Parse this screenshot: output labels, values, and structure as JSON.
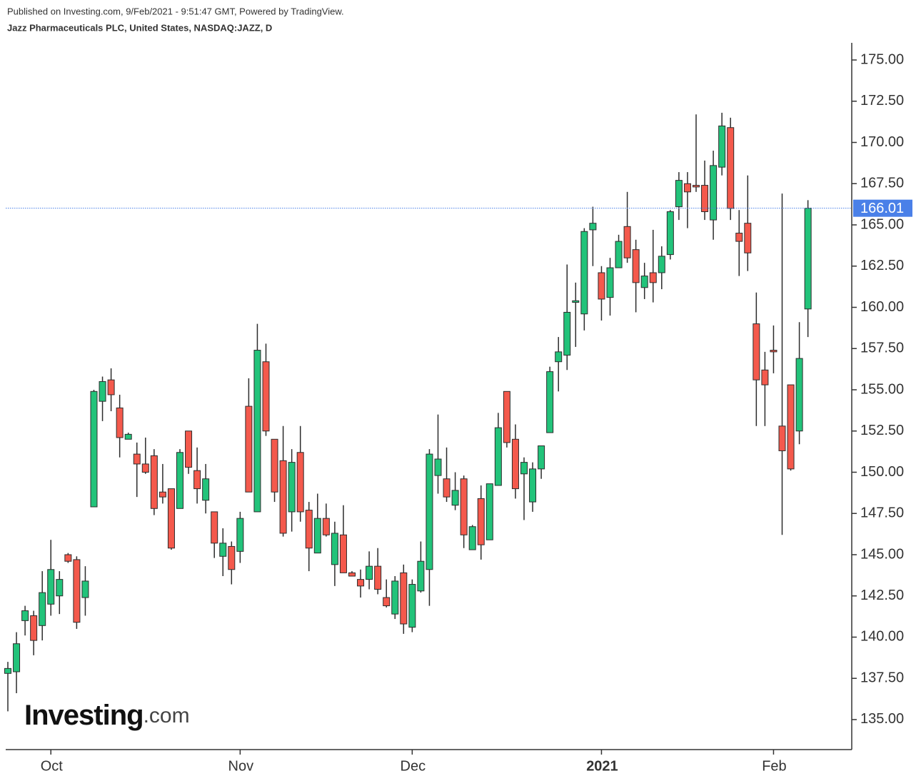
{
  "chart_data": {
    "type": "candlestick",
    "header": "Published on Investing.com, 9/Feb/2021 - 9:51:47 GMT, Powered by TradingView.",
    "title": "Jazz Pharmaceuticals PLC, United States, NASDAQ:JAZZ, D",
    "logo": [
      "Investing",
      ".com"
    ],
    "categories": [
      null,
      null,
      null,
      null,
      null,
      "Oct",
      null,
      null,
      null,
      null,
      null,
      null,
      null,
      null,
      null,
      null,
      null,
      null,
      null,
      null,
      null,
      null,
      null,
      null,
      null,
      null,
      null,
      "Nov",
      null,
      null,
      null,
      null,
      null,
      null,
      null,
      null,
      null,
      null,
      null,
      null,
      null,
      null,
      null,
      null,
      null,
      null,
      null,
      "Dec",
      null,
      null,
      null,
      null,
      null,
      null,
      null,
      null,
      null,
      null,
      null,
      null,
      null,
      null,
      null,
      null,
      null,
      null,
      null,
      null,
      null,
      "2021",
      null,
      null,
      null,
      null,
      null,
      null,
      null,
      null,
      null,
      null,
      null,
      null,
      null,
      null,
      null,
      null,
      null,
      null,
      null,
      "Feb",
      null,
      null,
      null,
      null,
      null
    ],
    "series": [
      {
        "open": [
          137.8,
          137.9,
          141.0,
          141.3,
          140.7,
          142.0,
          142.5,
          145.0,
          144.7,
          142.4,
          147.9,
          154.3,
          155.6,
          153.9,
          152.0,
          151.1,
          150.5,
          151.0,
          148.8,
          149.0,
          147.8,
          152.5,
          150.1,
          148.3,
          147.6,
          144.9,
          145.5,
          145.2,
          154.0,
          147.6,
          156.7,
          152.0,
          150.7,
          147.6,
          151.2,
          147.7,
          145.1,
          147.2,
          144.4,
          146.2,
          143.9,
          143.5,
          143.5,
          144.3,
          142.4,
          141.4,
          143.9,
          140.6,
          142.8,
          144.1,
          149.8,
          149.6,
          148.0,
          149.6,
          145.3,
          148.4,
          145.9,
          149.2,
          154.9,
          152.0,
          149.9,
          148.2,
          150.2,
          152.4,
          156.7,
          157.1,
          160.3,
          159.6,
          164.7,
          162.1,
          160.6,
          162.4,
          164.9,
          163.5,
          161.2,
          162.1,
          162.1,
          163.2,
          166.1,
          167.5,
          167.4,
          167.4,
          165.3,
          168.5,
          170.9,
          164.5,
          165.1,
          159.0,
          156.2,
          157.4,
          152.8,
          155.3,
          152.5,
          159.9
        ],
        "high": [
          138.5,
          140.3,
          141.9,
          141.6,
          144.0,
          145.9,
          144.0,
          145.1,
          144.9,
          144.3,
          155.0,
          155.8,
          156.3,
          154.7,
          152.4,
          151.8,
          152.1,
          151.4,
          150.5,
          149.0,
          151.4,
          152.5,
          151.5,
          150.5,
          147.6,
          146.6,
          145.8,
          147.6,
          155.7,
          159.0,
          157.8,
          152.0,
          152.8,
          151.4,
          152.8,
          148.2,
          148.7,
          148.1,
          147.0,
          148.0,
          144.0,
          144.1,
          145.2,
          145.4,
          143.5,
          143.7,
          144.4,
          143.5,
          145.8,
          151.4,
          153.5,
          151.5,
          150.0,
          149.8,
          146.8,
          149.2,
          149.3,
          153.6,
          154.9,
          152.9,
          150.9,
          150.6,
          151.6,
          156.4,
          158.2,
          162.6,
          161.5,
          164.8,
          166.1,
          162.5,
          163.0,
          164.4,
          167.0,
          164.1,
          162.7,
          164.7,
          163.7,
          165.9,
          168.2,
          168.2,
          171.7,
          168.9,
          169.5,
          171.8,
          171.5,
          165.9,
          168.0,
          160.9,
          157.3,
          158.9,
          166.9,
          155.3,
          159.1,
          166.5
        ],
        "low": [
          135.5,
          136.6,
          140.1,
          138.9,
          139.8,
          141.3,
          141.4,
          144.5,
          140.5,
          141.3,
          147.9,
          153.1,
          153.7,
          150.9,
          152.0,
          148.5,
          149.9,
          147.4,
          148.1,
          145.3,
          147.8,
          149.9,
          148.1,
          147.5,
          144.8,
          143.7,
          143.2,
          144.5,
          148.8,
          147.6,
          152.2,
          148.2,
          146.1,
          146.4,
          147.0,
          144.0,
          145.1,
          146.1,
          143.1,
          143.9,
          143.7,
          142.4,
          142.9,
          142.6,
          141.8,
          141.1,
          140.2,
          140.3,
          142.7,
          141.9,
          148.7,
          148.2,
          147.7,
          145.4,
          145.3,
          144.7,
          145.9,
          149.2,
          151.5,
          148.4,
          147.1,
          147.6,
          149.6,
          152.4,
          154.9,
          156.2,
          157.6,
          158.6,
          162.5,
          159.2,
          159.5,
          162.4,
          162.7,
          159.7,
          160.5,
          160.3,
          161.1,
          162.9,
          165.3,
          164.8,
          167.0,
          165.3,
          164.1,
          168.0,
          165.3,
          161.9,
          162.2,
          152.8,
          152.8,
          156.0,
          146.2,
          150.1,
          151.7,
          158.2
        ],
        "close": [
          138.1,
          139.6,
          141.6,
          139.8,
          142.7,
          144.1,
          143.5,
          144.6,
          140.9,
          143.4,
          154.9,
          155.5,
          154.7,
          152.1,
          152.3,
          150.5,
          150.0,
          147.8,
          148.5,
          145.4,
          151.2,
          150.3,
          149.0,
          149.6,
          145.7,
          145.7,
          144.1,
          147.2,
          148.8,
          157.4,
          152.5,
          148.8,
          146.3,
          150.6,
          147.6,
          145.4,
          147.2,
          146.2,
          146.3,
          143.9,
          143.7,
          143.1,
          144.3,
          142.9,
          141.9,
          143.4,
          140.8,
          143.2,
          144.6,
          151.1,
          150.8,
          148.5,
          148.9,
          146.2,
          146.7,
          145.6,
          149.3,
          152.7,
          151.8,
          149.0,
          150.6,
          150.2,
          151.6,
          156.1,
          157.3,
          159.7,
          160.4,
          164.6,
          165.1,
          160.5,
          162.4,
          164.0,
          163.0,
          161.5,
          161.9,
          161.5,
          163.1,
          165.8,
          167.7,
          167.0,
          167.3,
          165.8,
          168.6,
          171.0,
          166.0,
          164.0,
          163.3,
          155.6,
          155.3,
          157.3,
          151.3,
          150.2,
          156.9,
          166.01
        ]
      }
    ],
    "up_color": "#22c37a",
    "down_color": "#f4594c",
    "edge_color": "#2c2c2c",
    "last_price": 166.01,
    "last_price_color": "#4a80e8",
    "ylim": [
      133.18,
      176.04
    ],
    "yticks": [
      {
        "value": 135,
        "label": "135.00"
      },
      {
        "value": 137.5,
        "label": "137.50"
      },
      {
        "value": 140,
        "label": "140.00"
      },
      {
        "value": 142.5,
        "label": "142.50"
      },
      {
        "value": 145,
        "label": "145.00"
      },
      {
        "value": 147.5,
        "label": "147.50"
      },
      {
        "value": 150,
        "label": "150.00"
      },
      {
        "value": 152.5,
        "label": "152.50"
      },
      {
        "value": 155,
        "label": "155.00"
      },
      {
        "value": 157.5,
        "label": "157.50"
      },
      {
        "value": 160,
        "label": "160.00"
      },
      {
        "value": 162.5,
        "label": "162.50"
      },
      {
        "value": 165,
        "label": "165.00"
      },
      {
        "value": 167.5,
        "label": "167.50"
      },
      {
        "value": 170,
        "label": "170.00"
      },
      {
        "value": 172.5,
        "label": "172.50"
      },
      {
        "value": 175,
        "label": "175.00"
      }
    ],
    "grid": false
  }
}
